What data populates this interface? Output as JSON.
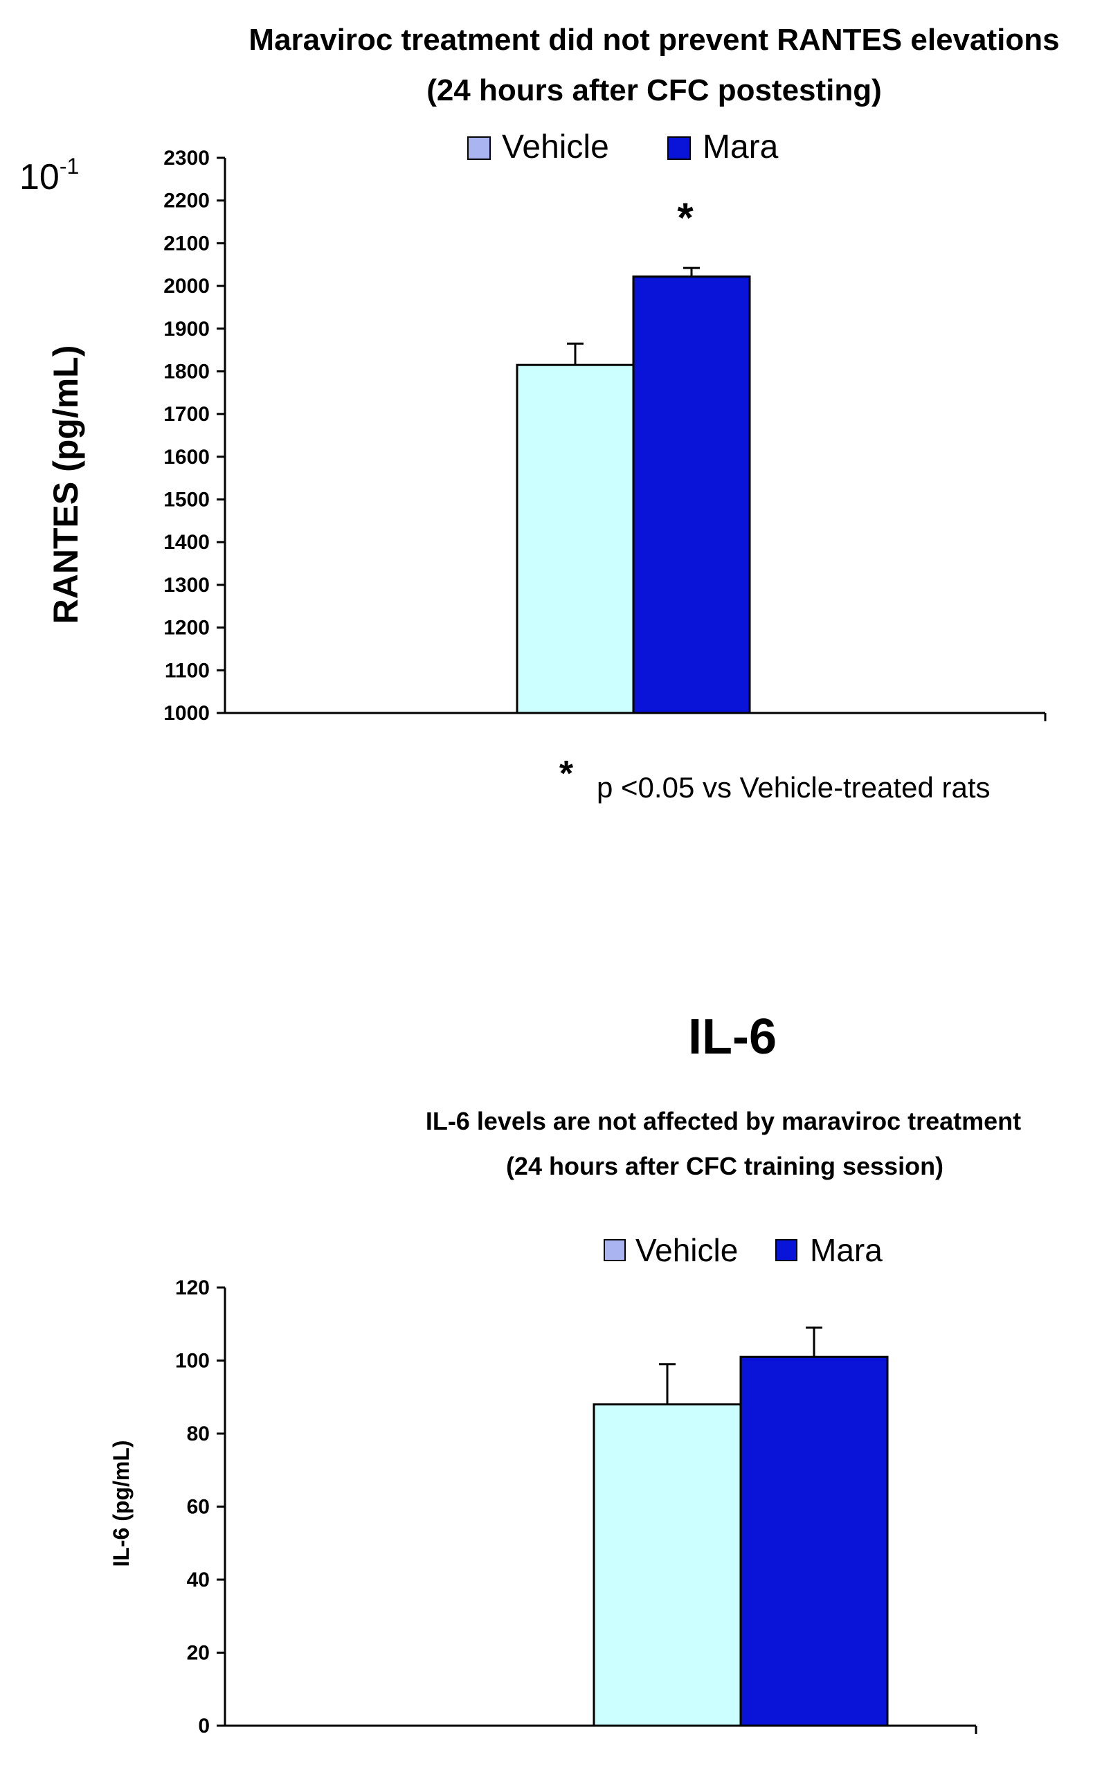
{
  "chart_data": [
    {
      "type": "bar",
      "title": "Maraviroc treatment did not prevent RANTES elevations",
      "subtitle": "(24 hours after CFC postesting)",
      "scale_note": "10",
      "scale_exponent": "-1",
      "ylabel": "RANTES (pg/mL)",
      "xlabel": "",
      "ylim": [
        1000,
        2300
      ],
      "yticks": [
        1000,
        1100,
        1200,
        1300,
        1400,
        1500,
        1600,
        1700,
        1800,
        1900,
        2000,
        2100,
        2200,
        2300
      ],
      "categories": [
        ""
      ],
      "series": [
        {
          "name": "Vehicle",
          "values": [
            1815
          ],
          "errors": [
            50
          ],
          "color": "#ccffff",
          "legend_color": "#aab4f0"
        },
        {
          "name": "Mara",
          "values": [
            2022
          ],
          "errors": [
            20
          ],
          "color": "#0a14d8",
          "legend_color": "#0a14d8"
        }
      ],
      "legend": [
        "Vehicle",
        "Mara"
      ],
      "legend_position": "top-center",
      "significance_marker": "*",
      "footnote_marker": "*",
      "footnote": "p <0.05 vs Vehicle-treated rats"
    },
    {
      "type": "bar",
      "heading": "IL-6",
      "title": "IL-6 levels are not affected by maraviroc treatment",
      "subtitle": "(24 hours after CFC training session)",
      "ylabel": "IL-6 (pg/mL)",
      "xlabel": "",
      "ylim": [
        0,
        120
      ],
      "yticks": [
        0,
        20,
        40,
        60,
        80,
        100,
        120
      ],
      "categories": [
        ""
      ],
      "series": [
        {
          "name": "Vehicle",
          "values": [
            88
          ],
          "errors": [
            11
          ],
          "color": "#ccffff",
          "legend_color": "#aab4f0"
        },
        {
          "name": "Mara",
          "values": [
            101
          ],
          "errors": [
            8
          ],
          "color": "#0a14d8",
          "legend_color": "#0a14d8"
        }
      ],
      "legend": [
        "Vehicle",
        "Mara"
      ],
      "legend_position": "top-center"
    }
  ]
}
